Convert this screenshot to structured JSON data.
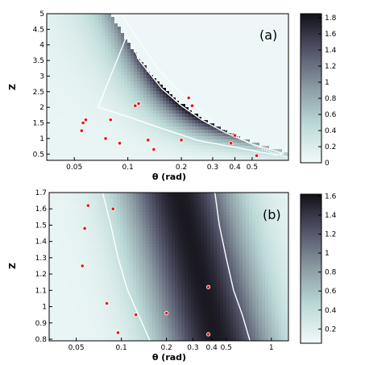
{
  "chart_data": [
    {
      "type": "heatmap",
      "panel_label": "(a)",
      "xlabel": "θ (rad)",
      "ylabel": "Z",
      "x_scale": "log",
      "xlim": [
        0.035,
        0.8
      ],
      "ylim": [
        0.3,
        5
      ],
      "x_ticks": [
        0.05,
        0.1,
        0.2,
        0.3,
        0.4,
        0.5
      ],
      "x_tick_labels": [
        "0.05",
        "0.1",
        "0.2",
        "0.3",
        "0.4",
        "0.5"
      ],
      "y_ticks": [
        0.5,
        1,
        1.5,
        2,
        2.5,
        3,
        3.5,
        4,
        4.5,
        5
      ],
      "y_tick_labels": [
        "0.5",
        "1",
        "1.5",
        "2",
        "2.5",
        "3",
        "3.5",
        "4",
        "4.5",
        "5"
      ],
      "colorbar": {
        "min": 0,
        "max": 1.85,
        "ticks": [
          0,
          0.2,
          0.4,
          0.6,
          0.8,
          1,
          1.2,
          1.4,
          1.6,
          1.8
        ],
        "tick_labels": [
          "0",
          "0.2",
          "0.4",
          "0.6",
          "0.8",
          "1",
          "1.2",
          "1.4",
          "1.6",
          "1.8"
        ]
      },
      "contour": [
        [
          0.068,
          2.0
        ],
        [
          0.098,
          4.25
        ],
        [
          0.104,
          4.1
        ],
        [
          0.116,
          3.5
        ],
        [
          0.155,
          2.6
        ],
        [
          0.2,
          2.05
        ],
        [
          0.26,
          1.6
        ],
        [
          0.35,
          1.2
        ],
        [
          0.5,
          0.82
        ],
        [
          0.75,
          0.52
        ],
        [
          0.68,
          0.47
        ],
        [
          0.4,
          0.72
        ],
        [
          0.25,
          0.93
        ],
        [
          0.15,
          1.35
        ],
        [
          0.1,
          1.7
        ],
        [
          0.068,
          2.0
        ]
      ],
      "boundary": [
        [
          0.092,
          5
        ],
        [
          0.11,
          4.3
        ],
        [
          0.15,
          3.2
        ],
        [
          0.2,
          2.45
        ],
        [
          0.3,
          1.55
        ],
        [
          0.4,
          1.1
        ],
        [
          0.5,
          0.82
        ],
        [
          0.6,
          0.62
        ],
        [
          0.8,
          0.38
        ]
      ],
      "points": [
        [
          0.055,
          1.25
        ],
        [
          0.056,
          1.5
        ],
        [
          0.058,
          1.6
        ],
        [
          0.075,
          1.0
        ],
        [
          0.08,
          1.6
        ],
        [
          0.09,
          0.85
        ],
        [
          0.11,
          2.05
        ],
        [
          0.115,
          2.12
        ],
        [
          0.13,
          0.95
        ],
        [
          0.14,
          0.65
        ],
        [
          0.2,
          0.95
        ],
        [
          0.22,
          2.3
        ],
        [
          0.23,
          2.05
        ],
        [
          0.38,
          0.85
        ],
        [
          0.4,
          1.1
        ],
        [
          0.53,
          0.45
        ]
      ]
    },
    {
      "type": "heatmap",
      "panel_label": "(b)",
      "xlabel": "θ (rad)",
      "ylabel": "Z",
      "x_scale": "log",
      "xlim": [
        0.033,
        1.3
      ],
      "ylim": [
        0.79,
        1.7
      ],
      "x_ticks": [
        0.05,
        0.1,
        0.2,
        0.3,
        0.4,
        0.5,
        1
      ],
      "x_tick_labels": [
        "0.05",
        "0.1",
        "0.2",
        "0.3",
        "0.4",
        "0.5",
        "1"
      ],
      "y_ticks": [
        0.8,
        0.9,
        1,
        1.1,
        1.2,
        1.3,
        1.4,
        1.5,
        1.6,
        1.7
      ],
      "y_tick_labels": [
        "0.8",
        "0.9",
        "1",
        "1.1",
        "1.2",
        "1.3",
        "1.4",
        "1.5",
        "1.6",
        "1.7"
      ],
      "colorbar": {
        "min": 0.05,
        "max": 1.62,
        "ticks": [
          0.2,
          0.4,
          0.6,
          0.8,
          1,
          1.2,
          1.4,
          1.6
        ],
        "tick_labels": [
          "0.2",
          "0.4",
          "0.6",
          "0.8",
          "1",
          "1.2",
          "1.4",
          "1.6"
        ]
      },
      "contour_left": [
        [
          0.075,
          1.7
        ],
        [
          0.085,
          1.5
        ],
        [
          0.095,
          1.3
        ],
        [
          0.11,
          1.1
        ],
        [
          0.13,
          0.95
        ],
        [
          0.155,
          0.79
        ]
      ],
      "contour_right": [
        [
          0.42,
          1.7
        ],
        [
          0.45,
          1.5
        ],
        [
          0.5,
          1.3
        ],
        [
          0.56,
          1.1
        ],
        [
          0.64,
          0.95
        ],
        [
          0.72,
          0.79
        ]
      ],
      "points": [
        [
          0.055,
          1.25
        ],
        [
          0.057,
          1.48
        ],
        [
          0.06,
          1.62
        ],
        [
          0.08,
          1.02
        ],
        [
          0.088,
          1.6
        ],
        [
          0.095,
          0.84
        ],
        [
          0.125,
          0.95
        ],
        [
          0.2,
          0.96
        ],
        [
          0.38,
          1.12
        ],
        [
          0.38,
          0.83
        ]
      ]
    }
  ]
}
